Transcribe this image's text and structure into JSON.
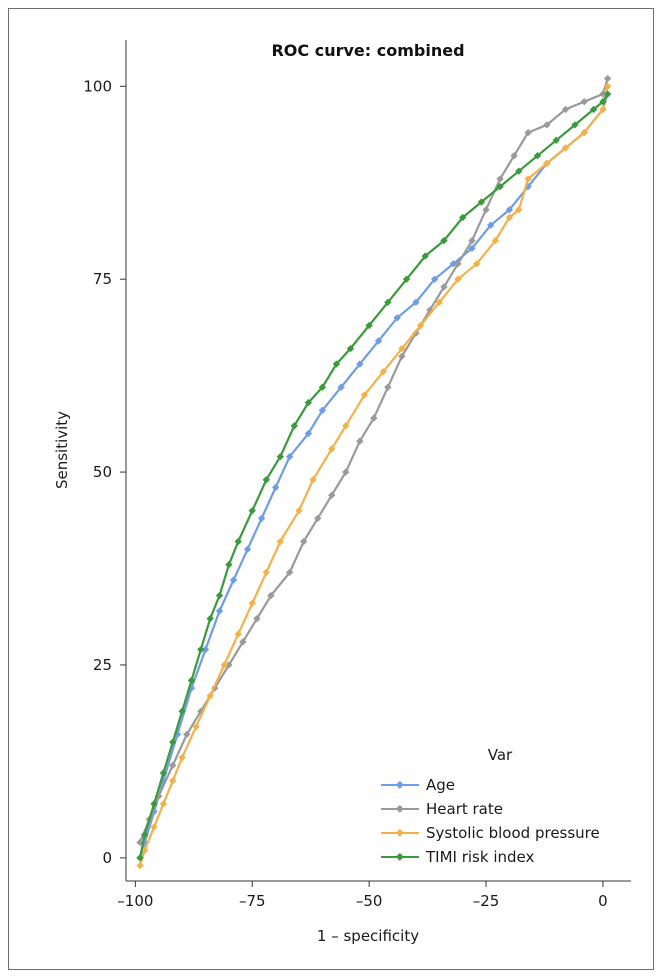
{
  "chart_data": {
    "type": "line",
    "title": "ROC curve: combined",
    "xlabel": "1 – specificity",
    "ylabel": "Sensitivity",
    "xlim": [
      -102,
      6
    ],
    "ylim": [
      -3,
      106
    ],
    "xticks": [
      -100,
      -75,
      -50,
      -25,
      0
    ],
    "xtick_labels": [
      "–100",
      "–75",
      "–50",
      "–25",
      "0"
    ],
    "yticks": [
      0,
      25,
      50,
      75,
      100
    ],
    "ytick_labels": [
      "0",
      "25",
      "50",
      "75",
      "100"
    ],
    "grid": false,
    "legend": {
      "title": "Var",
      "position": "bottom-right"
    },
    "series": [
      {
        "name": "Age",
        "color": "#6f9ce8",
        "x": [
          -99,
          -98,
          -96,
          -94,
          -91,
          -88,
          -85,
          -82,
          -79,
          -76,
          -73,
          -70,
          -67,
          -63,
          -60,
          -56,
          -52,
          -48,
          -44,
          -40,
          -36,
          -32,
          -28,
          -24,
          -20,
          -16,
          -12,
          -8,
          -4,
          0,
          1
        ],
        "y": [
          0,
          2,
          6,
          10,
          16,
          22,
          27,
          32,
          36,
          40,
          44,
          48,
          52,
          55,
          58,
          61,
          64,
          67,
          70,
          72,
          75,
          77,
          79,
          82,
          84,
          87,
          90,
          92,
          94,
          97,
          99
        ]
      },
      {
        "name": "Heart rate",
        "color": "#9a9a9a",
        "x": [
          -99,
          -97,
          -95,
          -92,
          -89,
          -86,
          -83,
          -80,
          -77,
          -74,
          -71,
          -67,
          -64,
          -61,
          -58,
          -55,
          -52,
          -49,
          -46,
          -43,
          -40,
          -37,
          -34,
          -31,
          -28,
          -25,
          -22,
          -19,
          -16,
          -12,
          -8,
          -4,
          0,
          1
        ],
        "y": [
          2,
          5,
          8,
          12,
          16,
          19,
          22,
          25,
          28,
          31,
          34,
          37,
          41,
          44,
          47,
          50,
          54,
          57,
          61,
          65,
          68,
          71,
          74,
          77,
          80,
          84,
          88,
          91,
          94,
          95,
          97,
          98,
          99,
          101
        ]
      },
      {
        "name": "Systolic blood pressure",
        "color": "#f2b24a",
        "x": [
          -99,
          -98,
          -96,
          -94,
          -92,
          -90,
          -87,
          -84,
          -81,
          -78,
          -75,
          -72,
          -69,
          -65,
          -62,
          -58,
          -55,
          -51,
          -47,
          -43,
          -39,
          -35,
          -31,
          -27,
          -23,
          -20,
          -18,
          -16,
          -12,
          -8,
          -4,
          0,
          1
        ],
        "y": [
          -1,
          1,
          4,
          7,
          10,
          13,
          17,
          21,
          25,
          29,
          33,
          37,
          41,
          45,
          49,
          53,
          56,
          60,
          63,
          66,
          69,
          72,
          75,
          77,
          80,
          83,
          84,
          88,
          90,
          92,
          94,
          97,
          100
        ]
      },
      {
        "name": "TIMI risk index",
        "color": "#3a9a3c",
        "x": [
          -99,
          -98,
          -96,
          -94,
          -92,
          -90,
          -88,
          -86,
          -84,
          -82,
          -80,
          -78,
          -75,
          -72,
          -69,
          -66,
          -63,
          -60,
          -57,
          -54,
          -50,
          -46,
          -42,
          -38,
          -34,
          -30,
          -26,
          -22,
          -18,
          -14,
          -10,
          -6,
          -2,
          0,
          1
        ],
        "y": [
          0,
          3,
          7,
          11,
          15,
          19,
          23,
          27,
          31,
          34,
          38,
          41,
          45,
          49,
          52,
          56,
          59,
          61,
          64,
          66,
          69,
          72,
          75,
          78,
          80,
          83,
          85,
          87,
          89,
          91,
          93,
          95,
          97,
          98,
          99
        ]
      }
    ]
  }
}
